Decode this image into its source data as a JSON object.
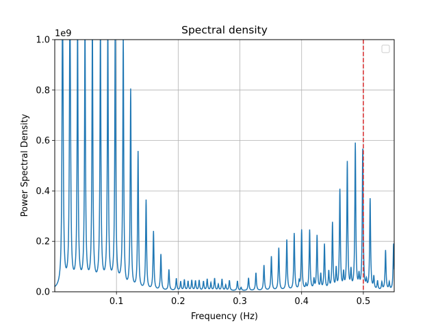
{
  "chart_data": {
    "type": "line",
    "title": "Spectral density",
    "xlabel": "Frequency (Hz)",
    "ylabel": "Power Spectral Density",
    "y_offset_label": "1e9",
    "xlim": [
      0.0,
      0.55
    ],
    "ylim": [
      0,
      1.0
    ],
    "y_scale_factor": 1000000000,
    "x_ticks": [
      0.1,
      0.2,
      0.3,
      0.4,
      0.5
    ],
    "x_tick_labels": [
      "0.1",
      "0.2",
      "0.3",
      "0.4",
      "0.5"
    ],
    "y_ticks": [
      0.0,
      0.2,
      0.4,
      0.6,
      0.8,
      1.0
    ],
    "y_tick_labels": [
      "0.0",
      "0.2",
      "0.4",
      "0.6",
      "0.8",
      "1.0"
    ],
    "grid": true,
    "legend": {
      "placement": "top-right",
      "entries": []
    },
    "line_color": "#1f77b4",
    "vline": {
      "x": 0.5,
      "color": "#d62728",
      "style": "dashed"
    },
    "series": [
      {
        "peaks": [
          {
            "x": 0.0125,
            "y": 1.0
          },
          {
            "x": 0.0135,
            "y": 0.31
          },
          {
            "x": 0.0245,
            "y": 1.0
          },
          {
            "x": 0.0255,
            "y": 0.27
          },
          {
            "x": 0.037,
            "y": 1.0
          },
          {
            "x": 0.049,
            "y": 1.0
          },
          {
            "x": 0.061,
            "y": 1.0
          },
          {
            "x": 0.074,
            "y": 1.0
          },
          {
            "x": 0.086,
            "y": 1.0
          },
          {
            "x": 0.098,
            "y": 1.0
          },
          {
            "x": 0.111,
            "y": 1.0
          },
          {
            "x": 0.123,
            "y": 0.79
          },
          {
            "x": 0.135,
            "y": 0.545
          },
          {
            "x": 0.148,
            "y": 0.355
          },
          {
            "x": 0.16,
            "y": 0.232
          },
          {
            "x": 0.172,
            "y": 0.142
          },
          {
            "x": 0.185,
            "y": 0.082
          },
          {
            "x": 0.197,
            "y": 0.047
          },
          {
            "x": 0.204,
            "y": 0.035
          },
          {
            "x": 0.21,
            "y": 0.042
          },
          {
            "x": 0.216,
            "y": 0.036
          },
          {
            "x": 0.222,
            "y": 0.04
          },
          {
            "x": 0.228,
            "y": 0.038
          },
          {
            "x": 0.234,
            "y": 0.04
          },
          {
            "x": 0.241,
            "y": 0.036
          },
          {
            "x": 0.247,
            "y": 0.045
          },
          {
            "x": 0.253,
            "y": 0.03
          },
          {
            "x": 0.259,
            "y": 0.048
          },
          {
            "x": 0.265,
            "y": 0.024
          },
          {
            "x": 0.271,
            "y": 0.045
          },
          {
            "x": 0.277,
            "y": 0.022
          },
          {
            "x": 0.283,
            "y": 0.04
          },
          {
            "x": 0.296,
            "y": 0.038
          },
          {
            "x": 0.302,
            "y": 0.012
          },
          {
            "x": 0.314,
            "y": 0.05
          },
          {
            "x": 0.326,
            "y": 0.07
          },
          {
            "x": 0.339,
            "y": 0.1
          },
          {
            "x": 0.351,
            "y": 0.135
          },
          {
            "x": 0.363,
            "y": 0.168
          },
          {
            "x": 0.376,
            "y": 0.2
          },
          {
            "x": 0.388,
            "y": 0.225
          },
          {
            "x": 0.396,
            "y": 0.03
          },
          {
            "x": 0.4,
            "y": 0.238
          },
          {
            "x": 0.407,
            "y": 0.02
          },
          {
            "x": 0.413,
            "y": 0.238
          },
          {
            "x": 0.42,
            "y": 0.04
          },
          {
            "x": 0.425,
            "y": 0.215
          },
          {
            "x": 0.431,
            "y": 0.06
          },
          {
            "x": 0.437,
            "y": 0.18
          },
          {
            "x": 0.444,
            "y": 0.07
          },
          {
            "x": 0.45,
            "y": 0.265
          },
          {
            "x": 0.456,
            "y": 0.08
          },
          {
            "x": 0.462,
            "y": 0.395
          },
          {
            "x": 0.468,
            "y": 0.06
          },
          {
            "x": 0.474,
            "y": 0.505
          },
          {
            "x": 0.48,
            "y": 0.07
          },
          {
            "x": 0.487,
            "y": 0.578
          },
          {
            "x": 0.493,
            "y": 0.05
          },
          {
            "x": 0.499,
            "y": 0.555
          },
          {
            "x": 0.505,
            "y": 0.03
          },
          {
            "x": 0.511,
            "y": 0.36
          },
          {
            "x": 0.517,
            "y": 0.05
          },
          {
            "x": 0.523,
            "y": 0.035
          },
          {
            "x": 0.53,
            "y": 0.03
          },
          {
            "x": 0.536,
            "y": 0.158
          },
          {
            "x": 0.542,
            "y": 0.03
          },
          {
            "x": 0.549,
            "y": 0.185
          }
        ]
      }
    ]
  }
}
